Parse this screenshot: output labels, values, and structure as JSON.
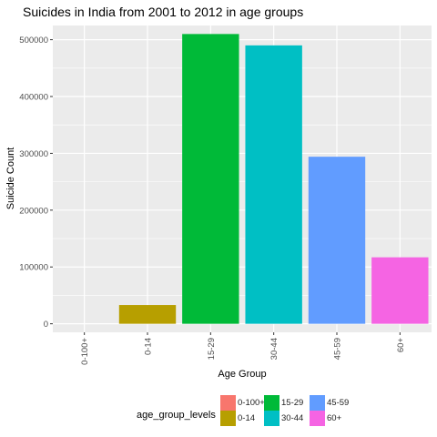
{
  "chart_data": {
    "type": "bar",
    "title": "Suicides in India from 2001 to 2012 in age groups",
    "xlabel": "Age Group",
    "ylabel": "Suicide Count",
    "categories": [
      "0-100+",
      "0-14",
      "15-29",
      "30-44",
      "45-59",
      "60+"
    ],
    "values": [
      0,
      33000,
      510000,
      490000,
      294000,
      117000
    ],
    "ylim": [
      -15000,
      525000
    ],
    "yticks": [
      0,
      100000,
      200000,
      300000,
      400000,
      500000
    ],
    "ytick_labels": [
      "0",
      "100000",
      "200000",
      "300000",
      "400000",
      "500000"
    ],
    "colors": [
      "#F8766D",
      "#B79F00",
      "#00BA38",
      "#00BFC4",
      "#619CFF",
      "#F564E3"
    ],
    "grid": true,
    "legend": {
      "title": "age_group_levels",
      "placement": "bottom",
      "entries": [
        "0-100+",
        "0-14",
        "15-29",
        "30-44",
        "45-59",
        "60+"
      ]
    }
  }
}
